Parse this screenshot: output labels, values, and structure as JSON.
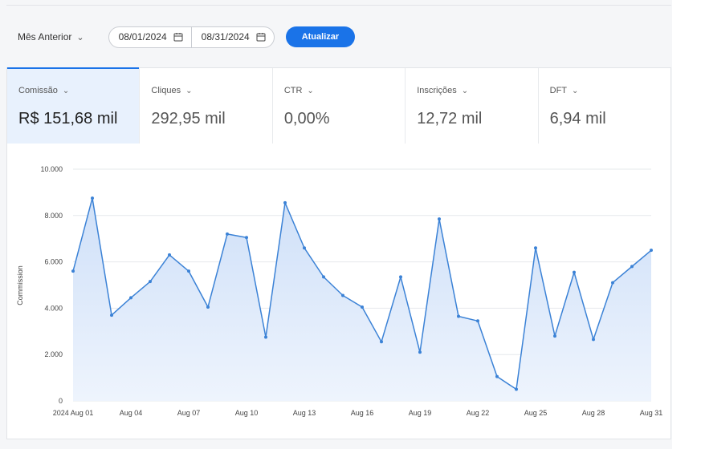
{
  "filters": {
    "period_label": "Mês Anterior",
    "start_date": "08/01/2024",
    "end_date": "08/31/2024",
    "update_label": "Atualizar"
  },
  "metrics": [
    {
      "label": "Comissão",
      "value": "R$ 151,68 mil",
      "active": true
    },
    {
      "label": "Cliques",
      "value": "292,95 mil",
      "active": false
    },
    {
      "label": "CTR",
      "value": "0,00%",
      "active": false
    },
    {
      "label": "Inscrições",
      "value": "12,72 mil",
      "active": false
    },
    {
      "label": "DFT",
      "value": "6,94 mil",
      "active": false
    }
  ],
  "colors": {
    "accent": "#1a73e8",
    "line": "#3b82d6",
    "area_top": "#cfe0f8",
    "area_bottom": "#eef4fd"
  },
  "chart_data": {
    "type": "area",
    "ylabel": "Commission",
    "ylim": [
      0,
      10000
    ],
    "yticks": [
      0,
      2000,
      4000,
      6000,
      8000,
      10000
    ],
    "ytick_labels": [
      "0",
      "2.000",
      "4.000",
      "6.000",
      "8.000",
      "10.000"
    ],
    "x_tick_labels": [
      "2024 Aug 01",
      "Aug 04",
      "Aug 07",
      "Aug 10",
      "Aug 13",
      "Aug 16",
      "Aug 19",
      "Aug 22",
      "Aug 25",
      "Aug 28",
      "Aug 31"
    ],
    "x_tick_days": [
      1,
      4,
      7,
      10,
      13,
      16,
      19,
      22,
      25,
      28,
      31
    ],
    "grid": true,
    "series": [
      {
        "days": [
          1,
          2,
          3,
          4,
          5,
          6,
          7,
          8,
          9,
          10,
          11,
          12,
          13,
          14,
          15,
          16,
          17,
          18,
          19,
          20,
          21,
          22,
          23,
          24,
          25,
          26,
          27,
          28,
          29,
          30,
          31
        ],
        "values": [
          5600,
          8750,
          3700,
          4450,
          5150,
          6300,
          5600,
          4050,
          7200,
          7050,
          2750,
          8550,
          6600,
          5350,
          4550,
          4050,
          2550,
          5350,
          2100,
          7850,
          3650,
          3450,
          1050,
          500,
          6600,
          2800,
          5550,
          2650,
          5100,
          5800,
          6500
        ]
      }
    ]
  }
}
